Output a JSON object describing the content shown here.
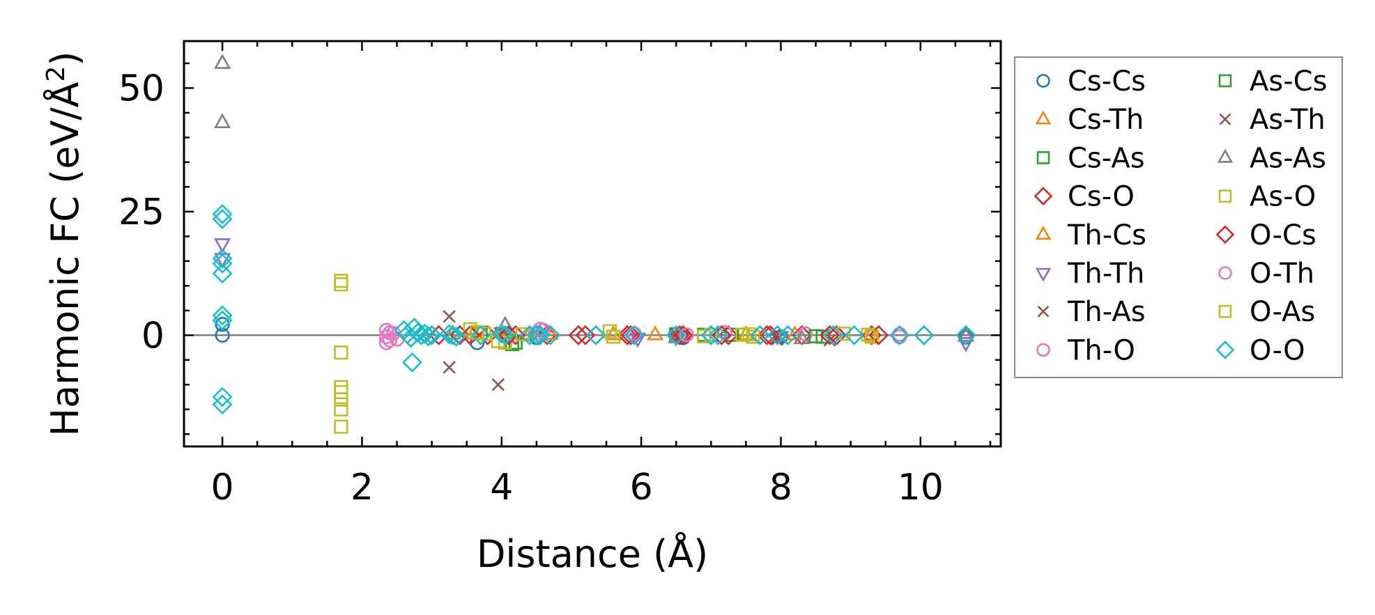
{
  "chart_data": {
    "type": "scatter",
    "xlabel": "Distance (Å)",
    "ylabel_main": "Harmonic FC (eV/Å",
    "ylabel_sup": "2",
    "ylabel_close": ")",
    "xlim": [
      -0.55,
      11.15
    ],
    "ylim": [
      -22.5,
      59.5
    ],
    "xticks": [
      0,
      2,
      4,
      6,
      8,
      10
    ],
    "xtick_labels": [
      "0",
      "2",
      "4",
      "6",
      "8",
      "10"
    ],
    "yticks": [
      0,
      25,
      50
    ],
    "ytick_labels": [
      "0",
      "25",
      "50"
    ],
    "grid": false,
    "zero_line": true,
    "legend_position": "outside-right",
    "series": [
      {
        "name": "Cs-Cs",
        "marker": "circle",
        "color": "#1f77b4",
        "points": [
          [
            0,
            0
          ],
          [
            0,
            2.2
          ],
          [
            3.65,
            -1.5
          ],
          [
            4.5,
            -0.5
          ],
          [
            6.6,
            -0.5
          ],
          [
            8.0,
            -0.3
          ],
          [
            10.65,
            -0.4
          ]
        ]
      },
      {
        "name": "Cs-Th",
        "marker": "triangle-up",
        "color": "#ff7f0e",
        "points": [
          [
            3.3,
            0.3
          ],
          [
            4.4,
            0.2
          ],
          [
            5.6,
            0.1
          ],
          [
            7.5,
            0.1
          ],
          [
            9.3,
            0.1
          ]
        ]
      },
      {
        "name": "Cs-As",
        "marker": "square",
        "color": "#2ca02c",
        "points": [
          [
            3.7,
            0.5
          ],
          [
            4.2,
            -1.5
          ],
          [
            6.5,
            0.2
          ],
          [
            7.3,
            0.1
          ],
          [
            8.6,
            -0.3
          ]
        ]
      },
      {
        "name": "Cs-O",
        "marker": "diamond",
        "color": "#d62728",
        "points": [
          [
            3.0,
            0
          ],
          [
            3.4,
            0
          ],
          [
            3.8,
            0
          ],
          [
            4.2,
            0
          ],
          [
            4.65,
            0
          ],
          [
            5.1,
            0
          ],
          [
            5.35,
            0
          ],
          [
            5.8,
            0
          ],
          [
            6.55,
            0
          ],
          [
            7.0,
            0
          ],
          [
            7.25,
            0
          ],
          [
            7.8,
            0
          ],
          [
            8.3,
            0
          ],
          [
            8.8,
            0
          ],
          [
            9.3,
            0
          ],
          [
            10.05,
            0
          ],
          [
            10.65,
            0
          ]
        ]
      },
      {
        "name": "Th-Cs",
        "marker": "triangle-up",
        "color": "#ff7f0e",
        "points": [
          [
            3.6,
            0.3
          ],
          [
            4.7,
            0.2
          ],
          [
            6.2,
            0.1
          ],
          [
            8.2,
            0.1
          ]
        ]
      },
      {
        "name": "Th-Th",
        "marker": "triangle-down",
        "color": "#9467bd",
        "points": [
          [
            0,
            18.5
          ],
          [
            0,
            15.5
          ],
          [
            4.0,
            0.5
          ],
          [
            5.95,
            -0.6
          ],
          [
            6.5,
            -0.4
          ],
          [
            8.0,
            -0.3
          ],
          [
            10.65,
            -1.5
          ]
        ]
      },
      {
        "name": "Th-As",
        "marker": "x",
        "color": "#8c564b",
        "points": [
          [
            3.25,
            3.8
          ],
          [
            3.25,
            -6.5
          ],
          [
            3.95,
            -10.0
          ],
          [
            4.0,
            0.5
          ],
          [
            6.5,
            0.2
          ],
          [
            7.95,
            -0.8
          ],
          [
            8.7,
            -1.0
          ]
        ]
      },
      {
        "name": "Th-O",
        "marker": "circle",
        "color": "#e377c2",
        "points": [
          [
            2.35,
            1.0
          ],
          [
            2.35,
            -0.3
          ],
          [
            2.35,
            -1.5
          ],
          [
            2.45,
            0.4
          ],
          [
            2.5,
            -0.8
          ],
          [
            4.5,
            0.5
          ],
          [
            4.6,
            1.0
          ],
          [
            6.6,
            0.2
          ],
          [
            7.2,
            0.5
          ],
          [
            8.35,
            0.3
          ],
          [
            9.7,
            0.2
          ]
        ]
      },
      {
        "name": "As-Cs",
        "marker": "square",
        "color": "#2ca02c",
        "points": [
          [
            4.15,
            -1.8
          ],
          [
            6.9,
            0.1
          ],
          [
            8.5,
            -0.2
          ]
        ]
      },
      {
        "name": "As-Th",
        "marker": "x",
        "color": "#8c564b",
        "points": [
          [
            4.05,
            0.4
          ],
          [
            6.5,
            0.1
          ],
          [
            7.95,
            -0.3
          ]
        ]
      },
      {
        "name": "As-As",
        "marker": "triangle-up",
        "color": "#7f7f7f",
        "points": [
          [
            0,
            55.0
          ],
          [
            0,
            43.0
          ],
          [
            4.05,
            2.0
          ],
          [
            6.5,
            -0.5
          ],
          [
            8.3,
            -0.7
          ],
          [
            10.65,
            -0.2
          ]
        ]
      },
      {
        "name": "As-O",
        "marker": "square",
        "color": "#bcbd22",
        "points": [
          [
            1.7,
            11.0
          ],
          [
            1.7,
            10.3
          ],
          [
            1.7,
            -3.5
          ],
          [
            1.7,
            -10.5
          ],
          [
            1.7,
            -11.5
          ],
          [
            1.7,
            -13.0
          ],
          [
            1.7,
            -15.0
          ],
          [
            1.7,
            -18.5
          ],
          [
            3.55,
            1.2
          ],
          [
            3.75,
            0.3
          ],
          [
            3.95,
            -1.2
          ],
          [
            4.05,
            -1.5
          ],
          [
            5.55,
            0.8
          ],
          [
            6.9,
            -0.2
          ],
          [
            7.0,
            0.1
          ],
          [
            7.45,
            0.1
          ],
          [
            7.6,
            -0.3
          ],
          [
            8.9,
            0.3
          ],
          [
            9.3,
            -0.3
          ]
        ]
      },
      {
        "name": "O-Cs",
        "marker": "diamond",
        "color": "#d62728",
        "points": [
          [
            3.1,
            0
          ],
          [
            3.55,
            0
          ],
          [
            4.1,
            0
          ],
          [
            4.55,
            0
          ],
          [
            5.2,
            0
          ],
          [
            5.85,
            0
          ],
          [
            6.6,
            0
          ],
          [
            7.15,
            0
          ],
          [
            7.85,
            0
          ],
          [
            8.7,
            0
          ],
          [
            9.4,
            0
          ]
        ]
      },
      {
        "name": "O-Th",
        "marker": "circle",
        "color": "#e377c2",
        "points": [
          [
            2.4,
            0.5
          ],
          [
            2.4,
            -1.0
          ],
          [
            4.55,
            1.2
          ],
          [
            5.9,
            0.3
          ],
          [
            6.65,
            0.1
          ],
          [
            9.7,
            -0.3
          ]
        ]
      },
      {
        "name": "O-As",
        "marker": "square",
        "color": "#bcbd22",
        "points": [
          [
            3.65,
            0.6
          ],
          [
            4.3,
            0.2
          ],
          [
            5.6,
            -0.3
          ],
          [
            7.55,
            0.2
          ],
          [
            9.25,
            0.1
          ]
        ]
      },
      {
        "name": "O-O",
        "marker": "diamond",
        "color": "#17becf",
        "points": [
          [
            0,
            24.5
          ],
          [
            0,
            23.5
          ],
          [
            0,
            15.5
          ],
          [
            0,
            14.5
          ],
          [
            0,
            12.5
          ],
          [
            0,
            4.0
          ],
          [
            0,
            3.0
          ],
          [
            0,
            -12.5
          ],
          [
            0,
            -14.0
          ],
          [
            2.6,
            1.0
          ],
          [
            2.65,
            0.2
          ],
          [
            2.7,
            -0.5
          ],
          [
            2.75,
            1.5
          ],
          [
            2.8,
            0.5
          ],
          [
            2.85,
            0
          ],
          [
            2.9,
            0.3
          ],
          [
            2.95,
            -0.2
          ],
          [
            3.0,
            0
          ],
          [
            2.72,
            -5.5
          ],
          [
            3.25,
            0.2
          ],
          [
            3.3,
            0
          ],
          [
            3.35,
            -0.3
          ],
          [
            3.7,
            0
          ],
          [
            4.0,
            0.3
          ],
          [
            4.05,
            0
          ],
          [
            4.4,
            0
          ],
          [
            4.5,
            0
          ],
          [
            4.55,
            0
          ],
          [
            4.7,
            0
          ],
          [
            5.35,
            0
          ],
          [
            5.9,
            0
          ],
          [
            6.5,
            0
          ],
          [
            7.0,
            0
          ],
          [
            7.1,
            0
          ],
          [
            7.7,
            0
          ],
          [
            7.95,
            0
          ],
          [
            8.1,
            0
          ],
          [
            8.75,
            0
          ],
          [
            9.05,
            0
          ],
          [
            9.7,
            0
          ],
          [
            10.05,
            0
          ],
          [
            10.65,
            0
          ]
        ]
      }
    ]
  }
}
